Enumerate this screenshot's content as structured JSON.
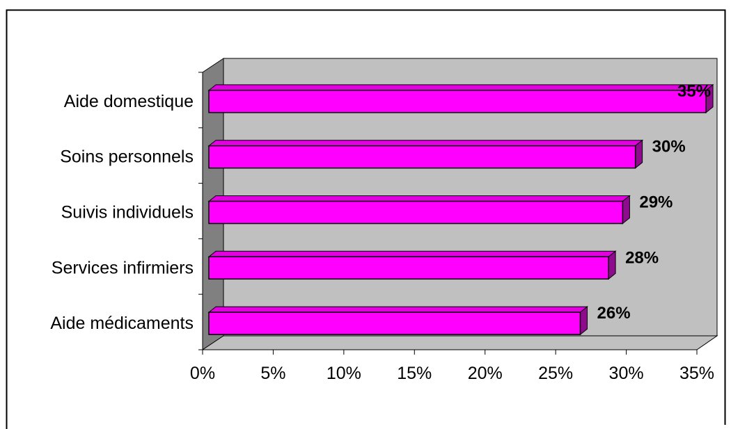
{
  "chart_data": {
    "type": "bar",
    "orientation": "horizontal",
    "style": "3d",
    "categories": [
      "Aide domestique",
      "Soins personnels",
      "Suivis individuels",
      "Services infirmiers",
      "Aide médicaments"
    ],
    "values": [
      35.2,
      30.2,
      29.3,
      28.3,
      26.3
    ],
    "data_labels": [
      "35%",
      "30%",
      "29%",
      "28%",
      "26%"
    ],
    "xlim": [
      0,
      35
    ],
    "x_ticks": [
      "0%",
      "5%",
      "10%",
      "15%",
      "20%",
      "25%",
      "30%",
      "35%"
    ],
    "x_tick_values": [
      0,
      5,
      10,
      15,
      20,
      25,
      30,
      35
    ],
    "grid": false,
    "legend": "none",
    "colors": {
      "bar_face": "#ff00ff",
      "bar_top": "#e000e0",
      "bar_side": "#8e0b8e",
      "bar_outline": "#000000",
      "plot_back_wall": "#c0c0c0",
      "plot_side_wall": "#808080",
      "plot_floor": "#c0c0c0"
    }
  }
}
